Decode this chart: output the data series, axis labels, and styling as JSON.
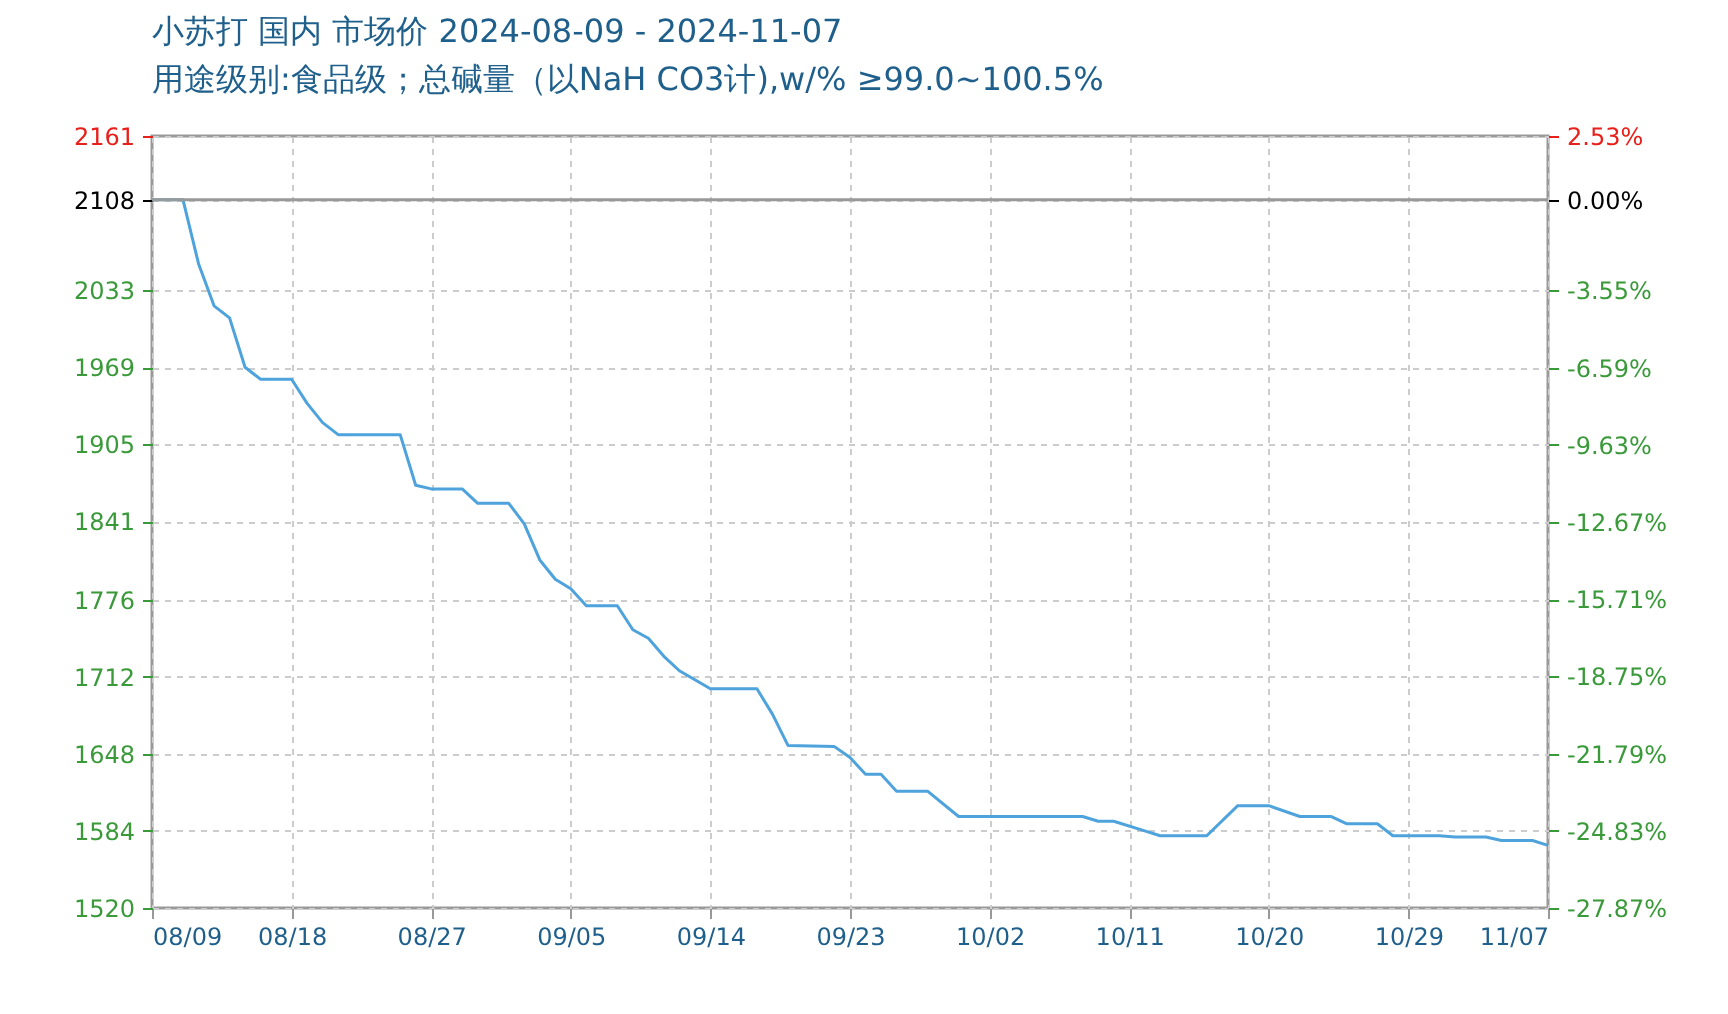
{
  "chart_data": {
    "type": "line",
    "title": "小苏打 国内 市场价 2024-08-09 - 2024-11-07",
    "subtitle": "用途级别:食品级；总碱量（以NaH CO3计),w/% ≥99.0~100.5%",
    "x": [
      "2024-08-09",
      "2024-08-11",
      "2024-08-12",
      "2024-08-13",
      "2024-08-14",
      "2024-08-15",
      "2024-08-16",
      "2024-08-18",
      "2024-08-19",
      "2024-08-20",
      "2024-08-21",
      "2024-08-25",
      "2024-08-26",
      "2024-08-27",
      "2024-08-29",
      "2024-08-30",
      "2024-09-01",
      "2024-09-02",
      "2024-09-03",
      "2024-09-04",
      "2024-09-05",
      "2024-09-06",
      "2024-09-08",
      "2024-09-09",
      "2024-09-10",
      "2024-09-11",
      "2024-09-12",
      "2024-09-14",
      "2024-09-17",
      "2024-09-18",
      "2024-09-19",
      "2024-09-22",
      "2024-09-23",
      "2024-09-24",
      "2024-09-25",
      "2024-09-26",
      "2024-09-28",
      "2024-09-30",
      "2024-10-08",
      "2024-10-09",
      "2024-10-10",
      "2024-10-12",
      "2024-10-13",
      "2024-10-16",
      "2024-10-18",
      "2024-10-20",
      "2024-10-22",
      "2024-10-24",
      "2024-10-25",
      "2024-10-27",
      "2024-10-28",
      "2024-10-31",
      "2024-11-01",
      "2024-11-03",
      "2024-11-04",
      "2024-11-06",
      "2024-11-07"
    ],
    "series": [
      {
        "color": "#4ea3dc",
        "values": [
          2108,
          2108,
          2055,
          2020,
          2010,
          1969,
          1959,
          1959,
          1939,
          1923,
          1913,
          1913,
          1871,
          1868,
          1868,
          1856,
          1856,
          1839,
          1809,
          1793,
          1785,
          1771,
          1771,
          1751,
          1744,
          1729,
          1717,
          1702,
          1702,
          1681,
          1655,
          1654,
          1645,
          1631,
          1631,
          1617,
          1617,
          1596,
          1596,
          1592,
          1592,
          1584,
          1580,
          1580,
          1605,
          1605,
          1596,
          1596,
          1590,
          1590,
          1580,
          1580,
          1579,
          1579,
          1576,
          1576,
          1572
        ]
      }
    ],
    "xlim": [
      "2024-08-09",
      "2024-11-07"
    ],
    "xticks": [
      {
        "value": "2024-08-09",
        "label": "08/09"
      },
      {
        "value": "2024-08-18",
        "label": "08/18"
      },
      {
        "value": "2024-08-27",
        "label": "08/27"
      },
      {
        "value": "2024-09-05",
        "label": "09/05"
      },
      {
        "value": "2024-09-14",
        "label": "09/14"
      },
      {
        "value": "2024-09-23",
        "label": "09/23"
      },
      {
        "value": "2024-10-02",
        "label": "10/02"
      },
      {
        "value": "2024-10-11",
        "label": "10/11"
      },
      {
        "value": "2024-10-20",
        "label": "10/20"
      },
      {
        "value": "2024-10-29",
        "label": "10/29"
      },
      {
        "value": "2024-11-07",
        "label": "11/07"
      }
    ],
    "ylim": [
      1520,
      2161
    ],
    "yticks": [
      1520,
      1584,
      1648,
      1712,
      1776,
      1841,
      1905,
      1969,
      2033,
      2108,
      2161
    ],
    "y2lim": [
      -27.87,
      2.53
    ],
    "y2ticks": [
      {
        "value": -27.87,
        "label": "-27.87%"
      },
      {
        "value": -24.83,
        "label": "-24.83%"
      },
      {
        "value": -21.79,
        "label": "-21.79%"
      },
      {
        "value": -18.75,
        "label": "-18.75%"
      },
      {
        "value": -15.71,
        "label": "-15.71%"
      },
      {
        "value": -12.67,
        "label": "-12.67%"
      },
      {
        "value": -9.63,
        "label": "-9.63%"
      },
      {
        "value": -6.59,
        "label": "-6.59%"
      },
      {
        "value": -3.55,
        "label": "-3.55%"
      },
      {
        "value": 0,
        "label": "0.00%"
      },
      {
        "value": 2.53,
        "label": "2.53%"
      }
    ],
    "ref_lines": [
      {
        "axis": "y",
        "value": 2108,
        "color": "#999999"
      }
    ],
    "grid": true
  }
}
